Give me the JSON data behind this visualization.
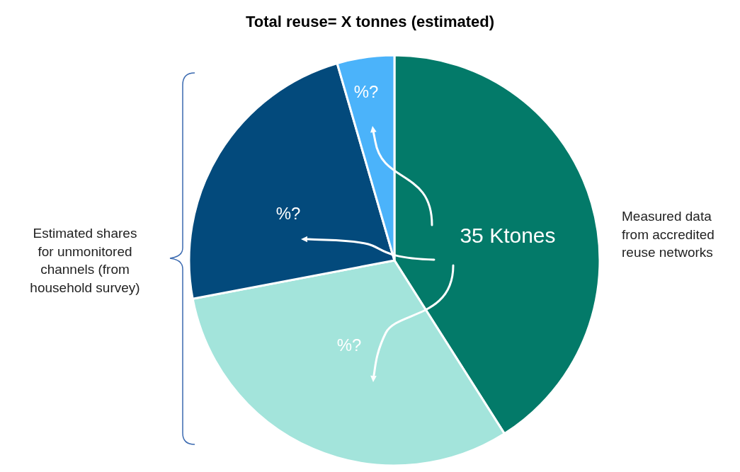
{
  "chart_data": {
    "type": "pie",
    "title": "Total reuse= X tonnes (estimated)",
    "categories": [
      null,
      null,
      null,
      null
    ],
    "values": [
      41,
      31,
      23.5,
      4.5
    ],
    "colors": [
      "#037a69",
      "#a3e4db",
      "#034a7c",
      "#4bb3fa"
    ],
    "annotations": [
      "35 Ktones",
      "%?",
      "%?",
      "%?",
      "Estimated shares\nfor unmonitored\nchannels (from\nhousehold survey)",
      "Measured data\nfrom accredited\nreuse networks"
    ]
  }
}
